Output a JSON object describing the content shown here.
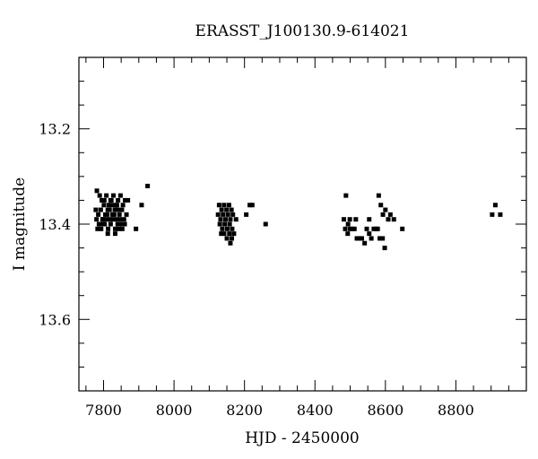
{
  "chart_data": {
    "type": "scatter",
    "title": "ERASST_J100130.9-614021",
    "xlabel": "HJD - 2450000",
    "ylabel": "I magnitude",
    "xlim": [
      7730,
      9000
    ],
    "ylim": [
      13.75,
      13.05
    ],
    "y_inverted": true,
    "grid": false,
    "xticks": [
      7800,
      8000,
      8200,
      8400,
      8600,
      8800
    ],
    "yticks": [
      13.2,
      13.4,
      13.6
    ],
    "xtick_labels": [
      "7800",
      "8000",
      "8200",
      "8400",
      "8600",
      "8800"
    ],
    "ytick_labels": [
      "13.2",
      "13.4",
      "13.6"
    ],
    "x_minor_step": 50,
    "y_minor_step": 0.05,
    "marker": "square",
    "color": "#000000",
    "points": [
      [
        7781,
        13.33
      ],
      [
        7789,
        13.34
      ],
      [
        7795,
        13.35
      ],
      [
        7802,
        13.35
      ],
      [
        7808,
        13.34
      ],
      [
        7815,
        13.36
      ],
      [
        7822,
        13.35
      ],
      [
        7828,
        13.34
      ],
      [
        7835,
        13.36
      ],
      [
        7841,
        13.35
      ],
      [
        7848,
        13.34
      ],
      [
        7855,
        13.36
      ],
      [
        7861,
        13.35
      ],
      [
        7869,
        13.35
      ],
      [
        7778,
        13.37
      ],
      [
        7785,
        13.38
      ],
      [
        7792,
        13.37
      ],
      [
        7798,
        13.39
      ],
      [
        7805,
        13.38
      ],
      [
        7812,
        13.37
      ],
      [
        7818,
        13.39
      ],
      [
        7825,
        13.38
      ],
      [
        7832,
        13.37
      ],
      [
        7838,
        13.36
      ],
      [
        7845,
        13.38
      ],
      [
        7852,
        13.37
      ],
      [
        7858,
        13.39
      ],
      [
        7865,
        13.38
      ],
      [
        7780,
        13.39
      ],
      [
        7787,
        13.4
      ],
      [
        7793,
        13.41
      ],
      [
        7800,
        13.4
      ],
      [
        7807,
        13.39
      ],
      [
        7813,
        13.41
      ],
      [
        7820,
        13.4
      ],
      [
        7827,
        13.39
      ],
      [
        7833,
        13.41
      ],
      [
        7840,
        13.4
      ],
      [
        7847,
        13.39
      ],
      [
        7853,
        13.41
      ],
      [
        7860,
        13.4
      ],
      [
        7783,
        13.41
      ],
      [
        7790,
        13.4
      ],
      [
        7797,
        13.39
      ],
      [
        7803,
        13.4
      ],
      [
        7810,
        13.38
      ],
      [
        7817,
        13.37
      ],
      [
        7823,
        13.36
      ],
      [
        7830,
        13.38
      ],
      [
        7837,
        13.39
      ],
      [
        7843,
        13.41
      ],
      [
        7850,
        13.4
      ],
      [
        7801,
        13.36
      ],
      [
        7820,
        13.35
      ],
      [
        7842,
        13.37
      ],
      [
        7833,
        13.42
      ],
      [
        7812,
        13.42
      ],
      [
        7892,
        13.41
      ],
      [
        7908,
        13.36
      ],
      [
        7925,
        13.32
      ],
      [
        8128,
        13.36
      ],
      [
        8135,
        13.37
      ],
      [
        8142,
        13.36
      ],
      [
        8149,
        13.37
      ],
      [
        8156,
        13.36
      ],
      [
        8163,
        13.37
      ],
      [
        8125,
        13.38
      ],
      [
        8132,
        13.39
      ],
      [
        8139,
        13.38
      ],
      [
        8146,
        13.39
      ],
      [
        8153,
        13.38
      ],
      [
        8160,
        13.39
      ],
      [
        8167,
        13.38
      ],
      [
        8130,
        13.4
      ],
      [
        8137,
        13.41
      ],
      [
        8144,
        13.4
      ],
      [
        8151,
        13.41
      ],
      [
        8158,
        13.4
      ],
      [
        8165,
        13.41
      ],
      [
        8134,
        13.42
      ],
      [
        8142,
        13.42
      ],
      [
        8150,
        13.43
      ],
      [
        8157,
        13.42
      ],
      [
        8164,
        13.43
      ],
      [
        8170,
        13.42
      ],
      [
        8160,
        13.44
      ],
      [
        8176,
        13.39
      ],
      [
        8205,
        13.38
      ],
      [
        8215,
        13.36
      ],
      [
        8222,
        13.36
      ],
      [
        8260,
        13.4
      ],
      [
        8488,
        13.34
      ],
      [
        8482,
        13.39
      ],
      [
        8494,
        13.4
      ],
      [
        8499,
        13.39
      ],
      [
        8506,
        13.41
      ],
      [
        8486,
        13.41
      ],
      [
        8493,
        13.42
      ],
      [
        8500,
        13.41
      ],
      [
        8512,
        13.41
      ],
      [
        8519,
        13.43
      ],
      [
        8526,
        13.43
      ],
      [
        8533,
        13.43
      ],
      [
        8541,
        13.44
      ],
      [
        8547,
        13.41
      ],
      [
        8554,
        13.42
      ],
      [
        8560,
        13.43
      ],
      [
        8567,
        13.41
      ],
      [
        8574,
        13.41
      ],
      [
        8581,
        13.34
      ],
      [
        8587,
        13.36
      ],
      [
        8593,
        13.38
      ],
      [
        8600,
        13.37
      ],
      [
        8608,
        13.39
      ],
      [
        8578,
        13.41
      ],
      [
        8584,
        13.43
      ],
      [
        8592,
        13.43
      ],
      [
        8598,
        13.45
      ],
      [
        8614,
        13.38
      ],
      [
        8624,
        13.39
      ],
      [
        8648,
        13.41
      ],
      [
        8554,
        13.39
      ],
      [
        8516,
        13.39
      ],
      [
        8903,
        13.38
      ],
      [
        8912,
        13.36
      ],
      [
        8926,
        13.38
      ]
    ]
  }
}
